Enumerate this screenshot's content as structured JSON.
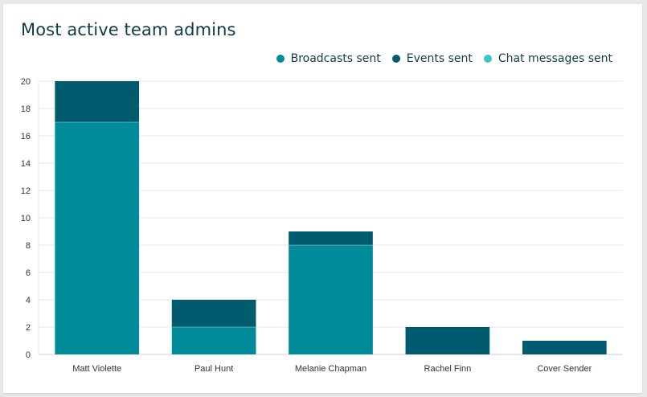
{
  "chart_data": {
    "type": "bar",
    "stacked": true,
    "title": "Most active team admins",
    "categories": [
      "Matt Violette",
      "Paul Hunt",
      "Melanie Chapman",
      "Rachel Finn",
      "Cover Sender"
    ],
    "series": [
      {
        "name": "Broadcasts sent",
        "color": "#008b9b",
        "values": [
          17,
          2,
          8,
          0,
          0
        ]
      },
      {
        "name": "Events sent",
        "color": "#005b6e",
        "values": [
          3,
          2,
          1,
          2,
          1
        ]
      },
      {
        "name": "Chat messages sent",
        "color": "#3cc3d0",
        "values": [
          0,
          0,
          0,
          0,
          0
        ]
      }
    ],
    "ylim": [
      0,
      20
    ],
    "yticks": [
      0,
      2,
      4,
      6,
      8,
      10,
      12,
      14,
      16,
      18,
      20
    ],
    "grid": true,
    "legend_position": "top-right"
  }
}
